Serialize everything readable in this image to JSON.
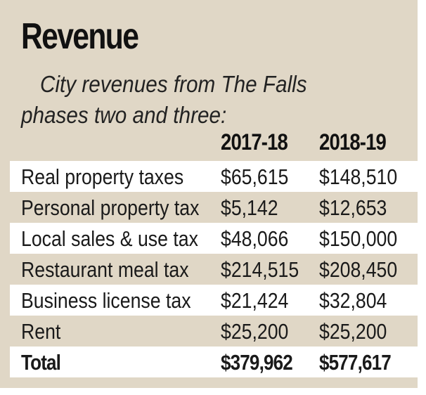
{
  "chart_data": {
    "type": "table",
    "title": "Revenue",
    "subtitle": "City revenues from The Falls phases two and three:",
    "columns": [
      "",
      "2017-18",
      "2018-19"
    ],
    "rows": [
      {
        "label": "Real property taxes",
        "values": [
          "$65,615",
          "$148,510"
        ]
      },
      {
        "label": "Personal property tax",
        "values": [
          "$5,142",
          "$12,653"
        ]
      },
      {
        "label": "Local sales & use tax",
        "values": [
          "$48,066",
          "$150,000"
        ]
      },
      {
        "label": "Restaurant meal tax",
        "values": [
          "$214,515",
          "$208,450"
        ]
      },
      {
        "label": "Business license tax",
        "values": [
          "$21,424",
          "$32,804"
        ]
      },
      {
        "label": "Rent",
        "values": [
          "$25,200",
          "$25,200"
        ]
      },
      {
        "label": "Total",
        "values": [
          "$379,962",
          "$577,617"
        ]
      }
    ]
  },
  "colors": {
    "panel_background": "#e0d7c6",
    "row_stripe": "#ffffff",
    "text": "#111111"
  }
}
